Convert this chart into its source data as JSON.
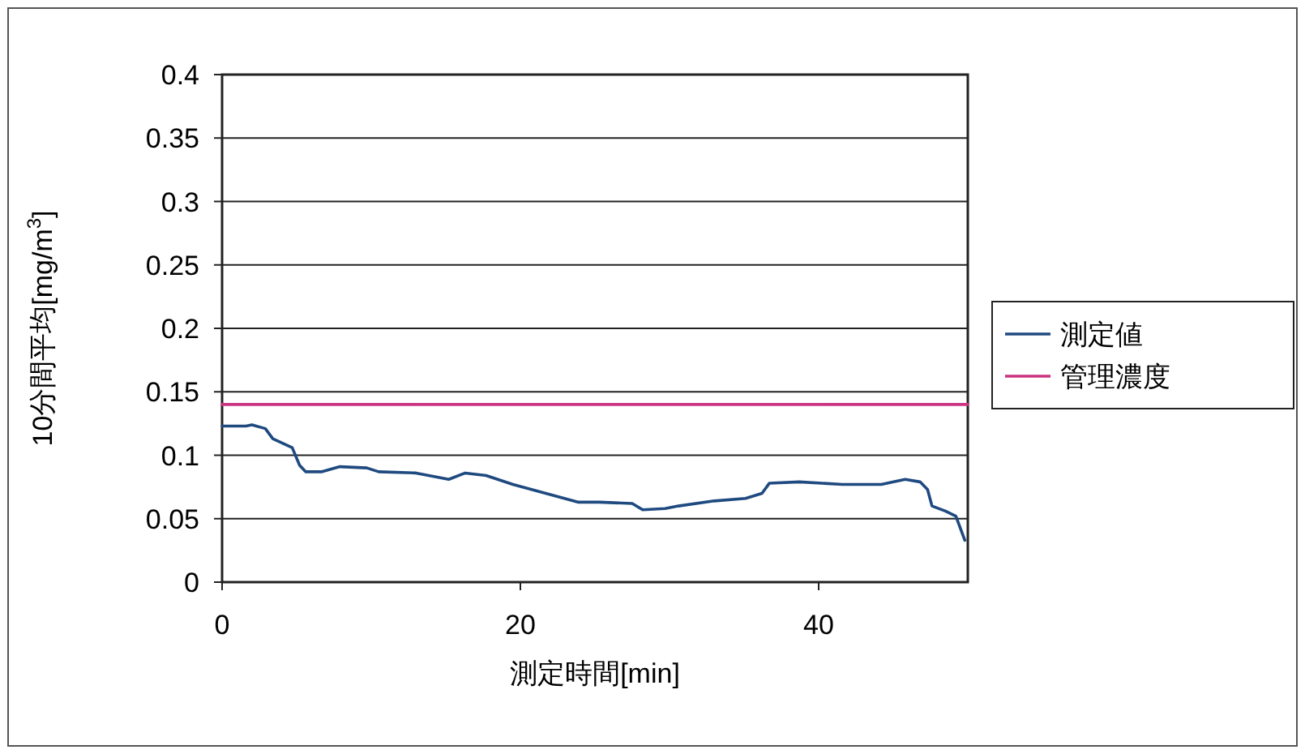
{
  "chart_data": {
    "type": "line",
    "xlabel": "測定時間[min]",
    "ylabel": "10分間平均[mg/m$^{3}$]",
    "xlim": [
      0,
      50
    ],
    "xticks": [
      0,
      20,
      40
    ],
    "ylim": [
      0,
      0.4
    ],
    "yticks": [
      0,
      0.05,
      0.1,
      0.15,
      0.2,
      0.25,
      0.3,
      0.35,
      0.4
    ],
    "grid": "y",
    "legend": "right",
    "marker": "none",
    "line_style": "solid",
    "series": [
      {
        "name": "測定値",
        "color": "#1f4a80",
        "x": [
          0,
          1.6,
          2.0,
          2.9,
          3.4,
          4.7,
          5.2,
          5.6,
          6.7,
          7.9,
          9.7,
          10.5,
          13.0,
          15.2,
          16.3,
          17.7,
          19.5,
          21.7,
          23.9,
          25.3,
          27.5,
          28.2,
          29.7,
          30.6,
          33.0,
          35.1,
          36.2,
          36.7,
          38.7,
          41.6,
          44.2,
          45.8,
          46.8,
          47.3,
          47.6,
          48.5,
          49.2,
          49.8
        ],
        "values": [
          0.123,
          0.123,
          0.124,
          0.121,
          0.113,
          0.106,
          0.092,
          0.087,
          0.087,
          0.091,
          0.09,
          0.087,
          0.086,
          0.081,
          0.086,
          0.084,
          0.077,
          0.07,
          0.063,
          0.063,
          0.062,
          0.057,
          0.058,
          0.06,
          0.064,
          0.066,
          0.07,
          0.078,
          0.079,
          0.077,
          0.077,
          0.081,
          0.079,
          0.073,
          0.06,
          0.056,
          0.052,
          0.033
        ]
      },
      {
        "name": "管理濃度",
        "color": "#cc3380",
        "x": [
          0,
          50
        ],
        "values": [
          0.14,
          0.14
        ]
      }
    ]
  }
}
